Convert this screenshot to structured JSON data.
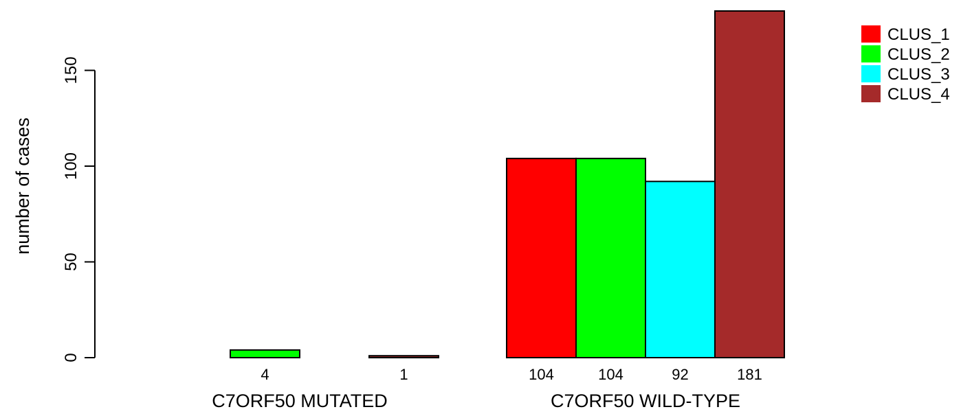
{
  "chart_data": {
    "type": "bar",
    "ylabel": "number of cases",
    "ylim": [
      0,
      185
    ],
    "yticks": [
      0,
      50,
      100,
      150
    ],
    "groups": [
      {
        "label": "C7ORF50 MUTATED",
        "values": [
          0,
          4,
          0,
          1
        ],
        "data_labels": [
          "",
          "4",
          "",
          "1"
        ]
      },
      {
        "label": "C7ORF50 WILD-TYPE",
        "values": [
          104,
          104,
          92,
          181
        ],
        "data_labels": [
          "104",
          "104",
          "92",
          "181"
        ]
      }
    ],
    "series": [
      {
        "name": "CLUS_1",
        "color": "#ff0000"
      },
      {
        "name": "CLUS_2",
        "color": "#00ff00"
      },
      {
        "name": "CLUS_3",
        "color": "#00ffff"
      },
      {
        "name": "CLUS_4",
        "color": "#a52a2a"
      }
    ],
    "legend": "top-right",
    "grid": false
  }
}
